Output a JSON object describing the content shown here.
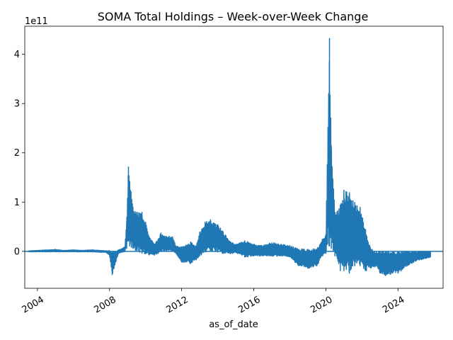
{
  "chart_data": {
    "type": "line",
    "title": "SOMA Total Holdings – Week-over-Week Change",
    "xlabel": "as_of_date",
    "ylabel": "",
    "y_offset_label": "1e11",
    "xlim": [
      2003.3,
      2026.5
    ],
    "ylim": [
      -0.75,
      4.57
    ],
    "y_unit_multiplier": 100000000000,
    "x_ticks": [
      2004,
      2008,
      2012,
      2016,
      2020,
      2024
    ],
    "x_tick_labels": [
      "2004",
      "2008",
      "2012",
      "2016",
      "2020",
      "2024"
    ],
    "y_ticks": [
      0,
      1,
      2,
      3,
      4
    ],
    "y_tick_labels": [
      "0",
      "1",
      "2",
      "3",
      "4"
    ],
    "zero_line": true,
    "grid": false,
    "series": [
      {
        "name": "",
        "color": "#1f77b4",
        "envelope": [
          {
            "x": 2003.5,
            "hi": 0.01,
            "lo": -0.01
          },
          {
            "x": 2004.0,
            "hi": 0.02,
            "lo": -0.01
          },
          {
            "x": 2004.6,
            "hi": 0.03,
            "lo": -0.01
          },
          {
            "x": 2005.0,
            "hi": 0.04,
            "lo": -0.01
          },
          {
            "x": 2005.5,
            "hi": 0.02,
            "lo": -0.01
          },
          {
            "x": 2006.0,
            "hi": 0.03,
            "lo": -0.01
          },
          {
            "x": 2006.5,
            "hi": 0.02,
            "lo": -0.01
          },
          {
            "x": 2007.0,
            "hi": 0.03,
            "lo": -0.01
          },
          {
            "x": 2007.5,
            "hi": 0.02,
            "lo": -0.02
          },
          {
            "x": 2007.8,
            "hi": 0.01,
            "lo": -0.02
          },
          {
            "x": 2008.0,
            "hi": 0.02,
            "lo": -0.08
          },
          {
            "x": 2008.15,
            "hi": 0.0,
            "lo": -0.48
          },
          {
            "x": 2008.3,
            "hi": 0.0,
            "lo": -0.28
          },
          {
            "x": 2008.5,
            "hi": 0.03,
            "lo": -0.04
          },
          {
            "x": 2008.7,
            "hi": 0.06,
            "lo": -0.02
          },
          {
            "x": 2008.85,
            "hi": 0.1,
            "lo": -0.01
          },
          {
            "x": 2008.95,
            "hi": 0.6,
            "lo": 0.05
          },
          {
            "x": 2009.05,
            "hi": 1.72,
            "lo": 0.2
          },
          {
            "x": 2009.12,
            "hi": 1.42,
            "lo": 0.1
          },
          {
            "x": 2009.3,
            "hi": 0.9,
            "lo": 0.05
          },
          {
            "x": 2009.5,
            "hi": 0.8,
            "lo": 0.0
          },
          {
            "x": 2009.8,
            "hi": 0.8,
            "lo": -0.05
          },
          {
            "x": 2010.0,
            "hi": 0.6,
            "lo": -0.05
          },
          {
            "x": 2010.2,
            "hi": 0.3,
            "lo": -0.08
          },
          {
            "x": 2010.5,
            "hi": 0.15,
            "lo": -0.08
          },
          {
            "x": 2010.7,
            "hi": 0.25,
            "lo": -0.05
          },
          {
            "x": 2010.85,
            "hi": 0.38,
            "lo": 0.0
          },
          {
            "x": 2011.0,
            "hi": 0.32,
            "lo": 0.0
          },
          {
            "x": 2011.5,
            "hi": 0.3,
            "lo": 0.0
          },
          {
            "x": 2011.7,
            "hi": 0.1,
            "lo": -0.05
          },
          {
            "x": 2012.0,
            "hi": 0.1,
            "lo": -0.22
          },
          {
            "x": 2012.5,
            "hi": 0.2,
            "lo": -0.25
          },
          {
            "x": 2012.8,
            "hi": 0.1,
            "lo": -0.18
          },
          {
            "x": 2013.0,
            "hi": 0.4,
            "lo": -0.1
          },
          {
            "x": 2013.3,
            "hi": 0.6,
            "lo": -0.02
          },
          {
            "x": 2013.6,
            "hi": 0.65,
            "lo": 0.0
          },
          {
            "x": 2014.0,
            "hi": 0.55,
            "lo": -0.02
          },
          {
            "x": 2014.3,
            "hi": 0.4,
            "lo": -0.05
          },
          {
            "x": 2014.7,
            "hi": 0.2,
            "lo": -0.05
          },
          {
            "x": 2015.0,
            "hi": 0.15,
            "lo": -0.03
          },
          {
            "x": 2015.5,
            "hi": 0.22,
            "lo": -0.12
          },
          {
            "x": 2016.0,
            "hi": 0.15,
            "lo": -0.1
          },
          {
            "x": 2016.5,
            "hi": 0.12,
            "lo": -0.1
          },
          {
            "x": 2017.0,
            "hi": 0.18,
            "lo": -0.1
          },
          {
            "x": 2017.5,
            "hi": 0.15,
            "lo": -0.1
          },
          {
            "x": 2018.0,
            "hi": 0.12,
            "lo": -0.12
          },
          {
            "x": 2018.5,
            "hi": 0.05,
            "lo": -0.3
          },
          {
            "x": 2019.0,
            "hi": 0.05,
            "lo": -0.35
          },
          {
            "x": 2019.5,
            "hi": 0.05,
            "lo": -0.3
          },
          {
            "x": 2019.8,
            "hi": 0.25,
            "lo": -0.1
          },
          {
            "x": 2020.0,
            "hi": 0.35,
            "lo": -0.05
          },
          {
            "x": 2020.2,
            "hi": 4.33,
            "lo": 0.1
          },
          {
            "x": 2020.3,
            "hi": 2.15,
            "lo": 0.05
          },
          {
            "x": 2020.5,
            "hi": 0.8,
            "lo": -0.1
          },
          {
            "x": 2020.8,
            "hi": 0.95,
            "lo": -0.4
          },
          {
            "x": 2021.0,
            "hi": 1.25,
            "lo": -0.4
          },
          {
            "x": 2021.3,
            "hi": 1.2,
            "lo": -0.45
          },
          {
            "x": 2021.6,
            "hi": 1.0,
            "lo": -0.3
          },
          {
            "x": 2021.9,
            "hi": 0.9,
            "lo": -0.3
          },
          {
            "x": 2022.2,
            "hi": 0.45,
            "lo": -0.4
          },
          {
            "x": 2022.5,
            "hi": 0.05,
            "lo": -0.35
          },
          {
            "x": 2022.8,
            "hi": 0.0,
            "lo": -0.3
          },
          {
            "x": 2023.0,
            "hi": 0.0,
            "lo": -0.45
          },
          {
            "x": 2023.3,
            "hi": 0.0,
            "lo": -0.5
          },
          {
            "x": 2023.7,
            "hi": 0.0,
            "lo": -0.45
          },
          {
            "x": 2024.0,
            "hi": 0.0,
            "lo": -0.45
          },
          {
            "x": 2024.5,
            "hi": 0.0,
            "lo": -0.3
          },
          {
            "x": 2025.0,
            "hi": 0.0,
            "lo": -0.2
          },
          {
            "x": 2025.5,
            "hi": 0.0,
            "lo": -0.15
          },
          {
            "x": 2025.8,
            "hi": 0.0,
            "lo": -0.12
          }
        ]
      }
    ]
  }
}
